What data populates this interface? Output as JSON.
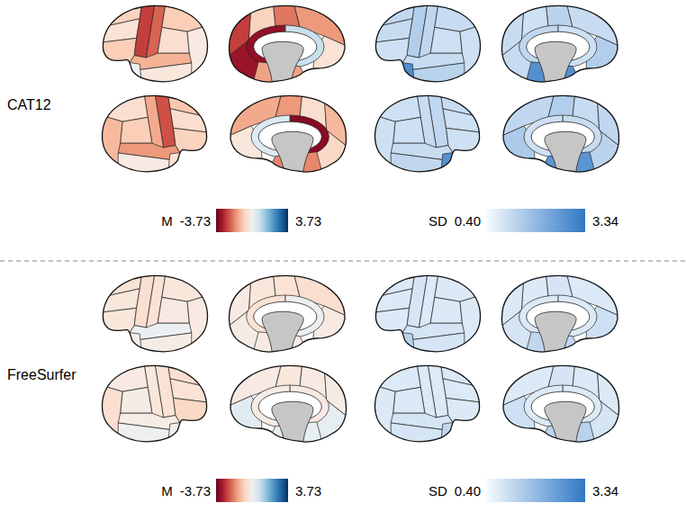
{
  "chart_data": {
    "type": "brain_map",
    "colorbars": [
      {
        "label": "M",
        "lim": [
          -3.73,
          3.73
        ],
        "ticks": [
          -3.73,
          3.73
        ]
      },
      {
        "label": "SD",
        "lim": [
          0.4,
          3.34
        ],
        "ticks": [
          {
            "value": 0.4,
            "label": "0.40"
          },
          3.34
        ]
      }
    ],
    "rows": [
      {
        "label": "CAT12",
        "panels": [
          {
            "left_lateral": [
              -0.8,
              -0.5,
              -0.9,
              -2.6,
              -2.2,
              -0.9,
              -0.6,
              -0.3,
              -1.3,
              -0.4,
              0.1
            ],
            "left_medial": [
              -1.6,
              -2.0,
              -0.8,
              -2.6,
              -3.2,
              -0.5,
              0.8,
              -3.3,
              -1.5
            ],
            "right_lateral": [
              -1.0,
              -0.6,
              -0.8,
              -2.4,
              -1.4,
              -0.6,
              -0.9,
              -1.2,
              -1.6,
              -0.3,
              -0.5
            ],
            "right_medial": [
              -1.4,
              -1.6,
              -0.6,
              -1.2,
              -0.7,
              -0.4,
              0.5,
              -3.4,
              -1.8
            ]
          },
          {
            "left_lateral": [
              1.2,
              1.1,
              1.0,
              1.4,
              1.2,
              1.1,
              1.0,
              1.0,
              1.1,
              1.3,
              2.9
            ],
            "left_medial": [
              1.1,
              1.3,
              1.0,
              1.1,
              1.1,
              1.4,
              1.0,
              1.2,
              2.8
            ],
            "right_lateral": [
              1.1,
              1.0,
              1.0,
              1.2,
              1.1,
              1.0,
              1.0,
              1.0,
              1.1,
              1.2,
              2.8
            ],
            "right_medial": [
              1.2,
              1.4,
              1.1,
              1.2,
              1.3,
              1.5,
              1.0,
              1.1,
              2.7
            ]
          }
        ]
      },
      {
        "label": "FreeSurfer",
        "panels": [
          {
            "left_lateral": [
              -0.5,
              -0.4,
              -0.4,
              -0.6,
              -0.5,
              -0.4,
              -0.3,
              -0.3,
              0.2,
              -0.2,
              -0.1
            ],
            "left_medial": [
              -0.6,
              -0.5,
              -0.4,
              -0.3,
              -0.2,
              -0.3,
              0.2,
              -0.5,
              -0.3
            ],
            "right_lateral": [
              -0.6,
              -0.5,
              -0.7,
              -0.5,
              -0.4,
              -0.3,
              -0.2,
              -0.6,
              -0.2,
              0.1,
              0.0
            ],
            "right_medial": [
              -0.3,
              -0.4,
              -0.3,
              -0.2,
              0.3,
              0.4,
              -0.2,
              -0.3,
              0.3
            ]
          },
          {
            "left_lateral": [
              0.8,
              0.8,
              0.8,
              0.9,
              0.8,
              0.8,
              0.8,
              0.8,
              0.9,
              0.9,
              1.3
            ],
            "left_medial": [
              0.8,
              0.9,
              0.8,
              0.8,
              0.9,
              1.0,
              0.8,
              0.8,
              1.2
            ],
            "right_lateral": [
              0.8,
              0.8,
              0.8,
              0.8,
              0.8,
              0.8,
              0.8,
              0.8,
              0.9,
              0.9,
              1.2
            ],
            "right_medial": [
              0.8,
              0.9,
              0.8,
              0.8,
              0.9,
              1.0,
              0.8,
              0.8,
              1.3
            ]
          }
        ]
      }
    ]
  }
}
